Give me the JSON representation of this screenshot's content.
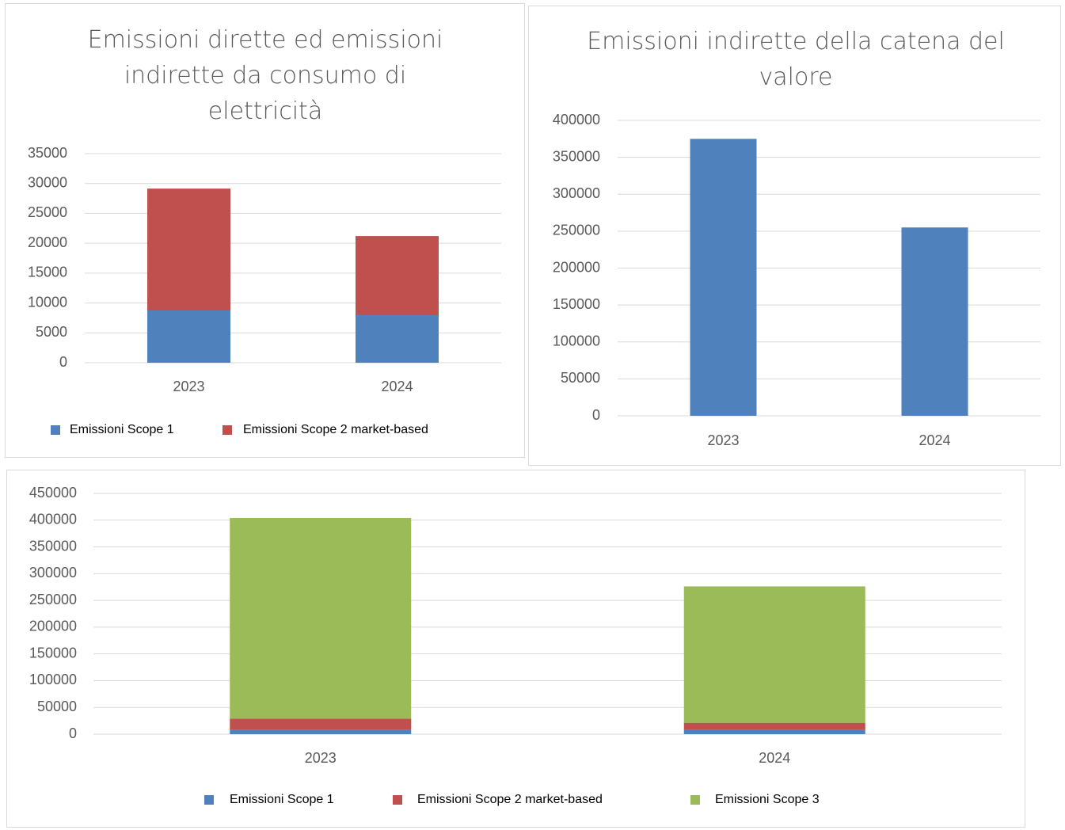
{
  "chart_data": [
    {
      "type": "bar",
      "stacked": true,
      "title": "Emissioni dirette ed emissioni indirette da consumo di elettricità",
      "categories": [
        "2023",
        "2024"
      ],
      "series": [
        {
          "name": "Emissioni Scope 1",
          "color": "#4f81bd",
          "values": [
            8750,
            7950
          ]
        },
        {
          "name": "Emissioni Scope 2 market-based",
          "color": "#c0504d",
          "values": [
            20400,
            13250
          ]
        }
      ],
      "ylim": [
        0,
        35000
      ],
      "yticks": [
        0,
        5000,
        10000,
        15000,
        20000,
        25000,
        30000,
        35000
      ],
      "grid": true,
      "legend": "bottom"
    },
    {
      "type": "bar",
      "title": "Emissioni indirette della catena del valore",
      "categories": [
        "2023",
        "2024"
      ],
      "values": [
        375000,
        255000
      ],
      "color": "#4f81bd",
      "ylim": [
        0,
        400000
      ],
      "yticks": [
        0,
        50000,
        100000,
        150000,
        200000,
        250000,
        300000,
        350000,
        400000
      ],
      "grid": true
    },
    {
      "type": "bar",
      "stacked": true,
      "categories": [
        "2023",
        "2024"
      ],
      "series": [
        {
          "name": "Emissioni Scope 1",
          "color": "#4f81bd",
          "values": [
            8750,
            7950
          ]
        },
        {
          "name": "Emissioni Scope 2 market-based",
          "color": "#c0504d",
          "values": [
            20400,
            13250
          ]
        },
        {
          "name": "Emissioni Scope 3",
          "color": "#9bbb59",
          "values": [
            375000,
            255000
          ]
        }
      ],
      "ylim": [
        0,
        450000
      ],
      "yticks": [
        0,
        50000,
        100000,
        150000,
        200000,
        250000,
        300000,
        350000,
        400000,
        450000
      ],
      "grid": true,
      "legend": "bottom"
    }
  ]
}
